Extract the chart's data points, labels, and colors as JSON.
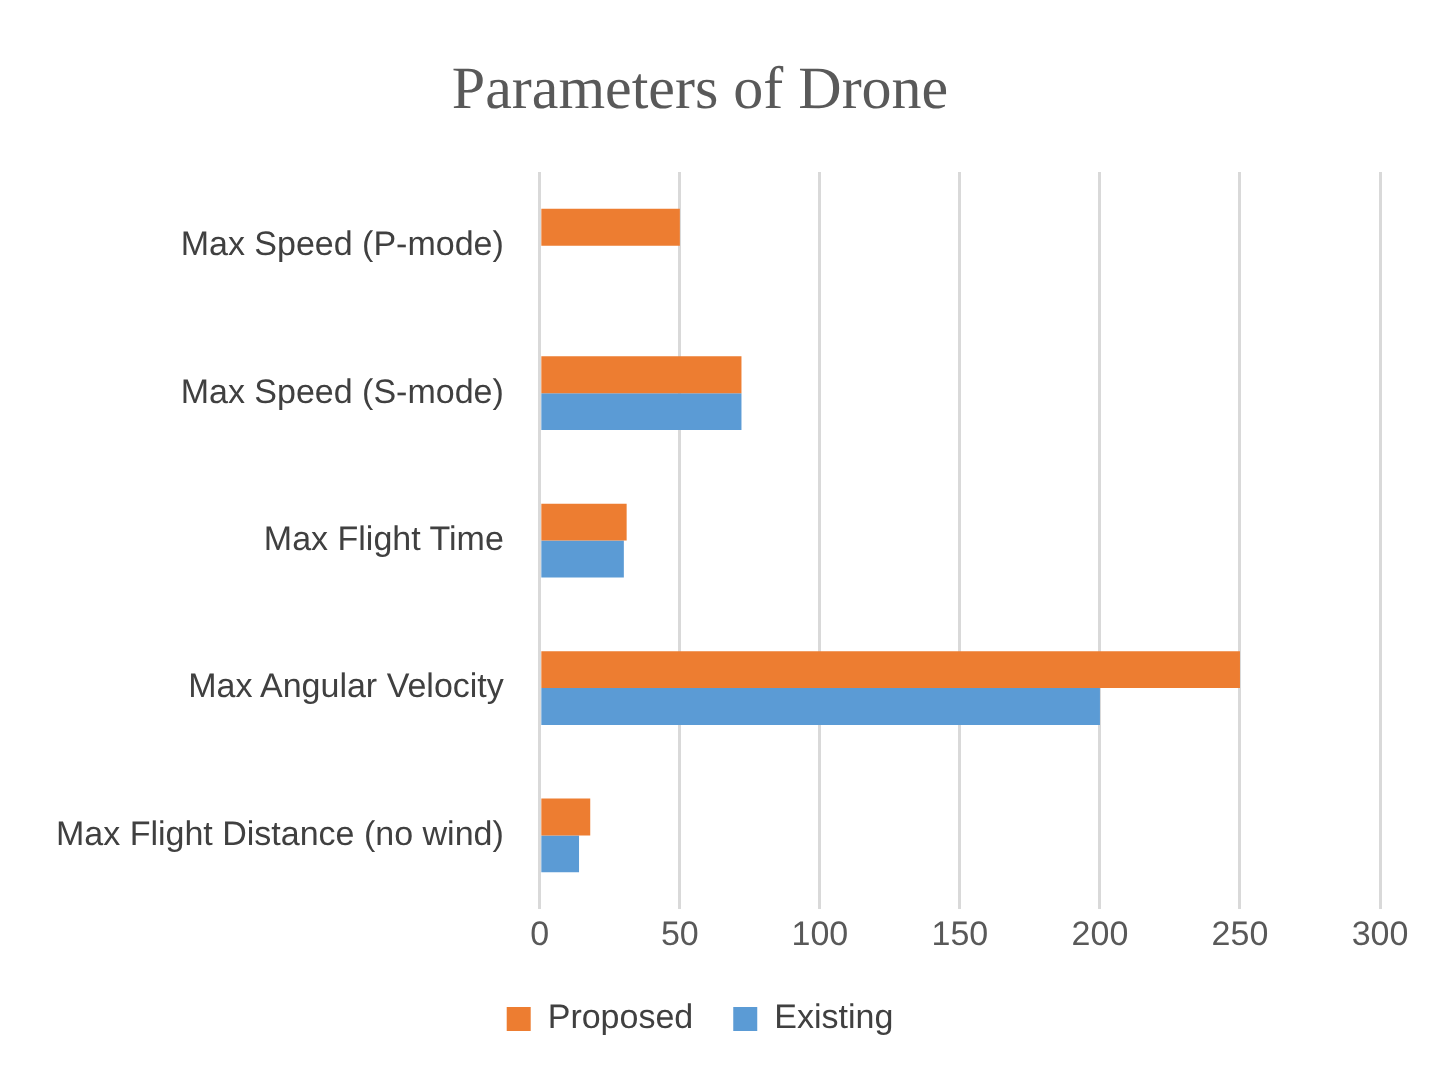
{
  "chart_data": {
    "type": "bar",
    "orientation": "horizontal",
    "title": "Parameters of Drone",
    "categories": [
      "Max Speed (P-mode)",
      "Max Speed (S-mode)",
      "Max Flight Time",
      "Max Angular Velocity",
      "Max Flight Distance (no wind)"
    ],
    "series": [
      {
        "name": "Proposed",
        "color": "#ed7d31",
        "values": [
          50,
          72,
          31,
          250,
          18
        ]
      },
      {
        "name": "Existing",
        "color": "#5b9bd5",
        "values": [
          null,
          72,
          30,
          200,
          14
        ]
      }
    ],
    "xlim": [
      0,
      300
    ],
    "xticks": [
      0,
      50,
      100,
      150,
      200,
      250,
      300
    ],
    "grid": "x",
    "legend": "bottom"
  }
}
